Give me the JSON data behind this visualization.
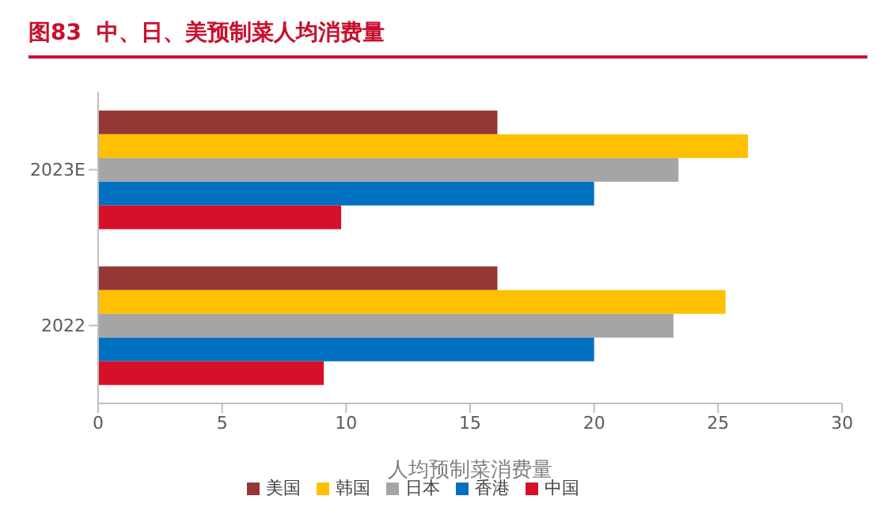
{
  "chart_data": {
    "type": "bar",
    "orientation": "horizontal",
    "title": "图83  中、日、美预制菜人均消费量",
    "xlabel": "人均预制菜消费量",
    "categories": [
      "2023E",
      "2022"
    ],
    "series": [
      {
        "name": "美国",
        "color": "#953735",
        "values": [
          16.1,
          16.1
        ]
      },
      {
        "name": "韩国",
        "color": "#ffc000",
        "values": [
          26.2,
          25.3
        ]
      },
      {
        "name": "日本",
        "color": "#a5a5a5",
        "values": [
          23.4,
          23.2
        ]
      },
      {
        "name": "香港",
        "color": "#0070c0",
        "values": [
          20.0,
          20.0
        ]
      },
      {
        "name": "中国",
        "color": "#d7102a",
        "values": [
          9.8,
          9.1
        ]
      }
    ],
    "xlim": [
      0,
      30
    ],
    "xticks": [
      0,
      5,
      10,
      15,
      20,
      25,
      30
    ],
    "grid": false,
    "legend": "bottom"
  }
}
